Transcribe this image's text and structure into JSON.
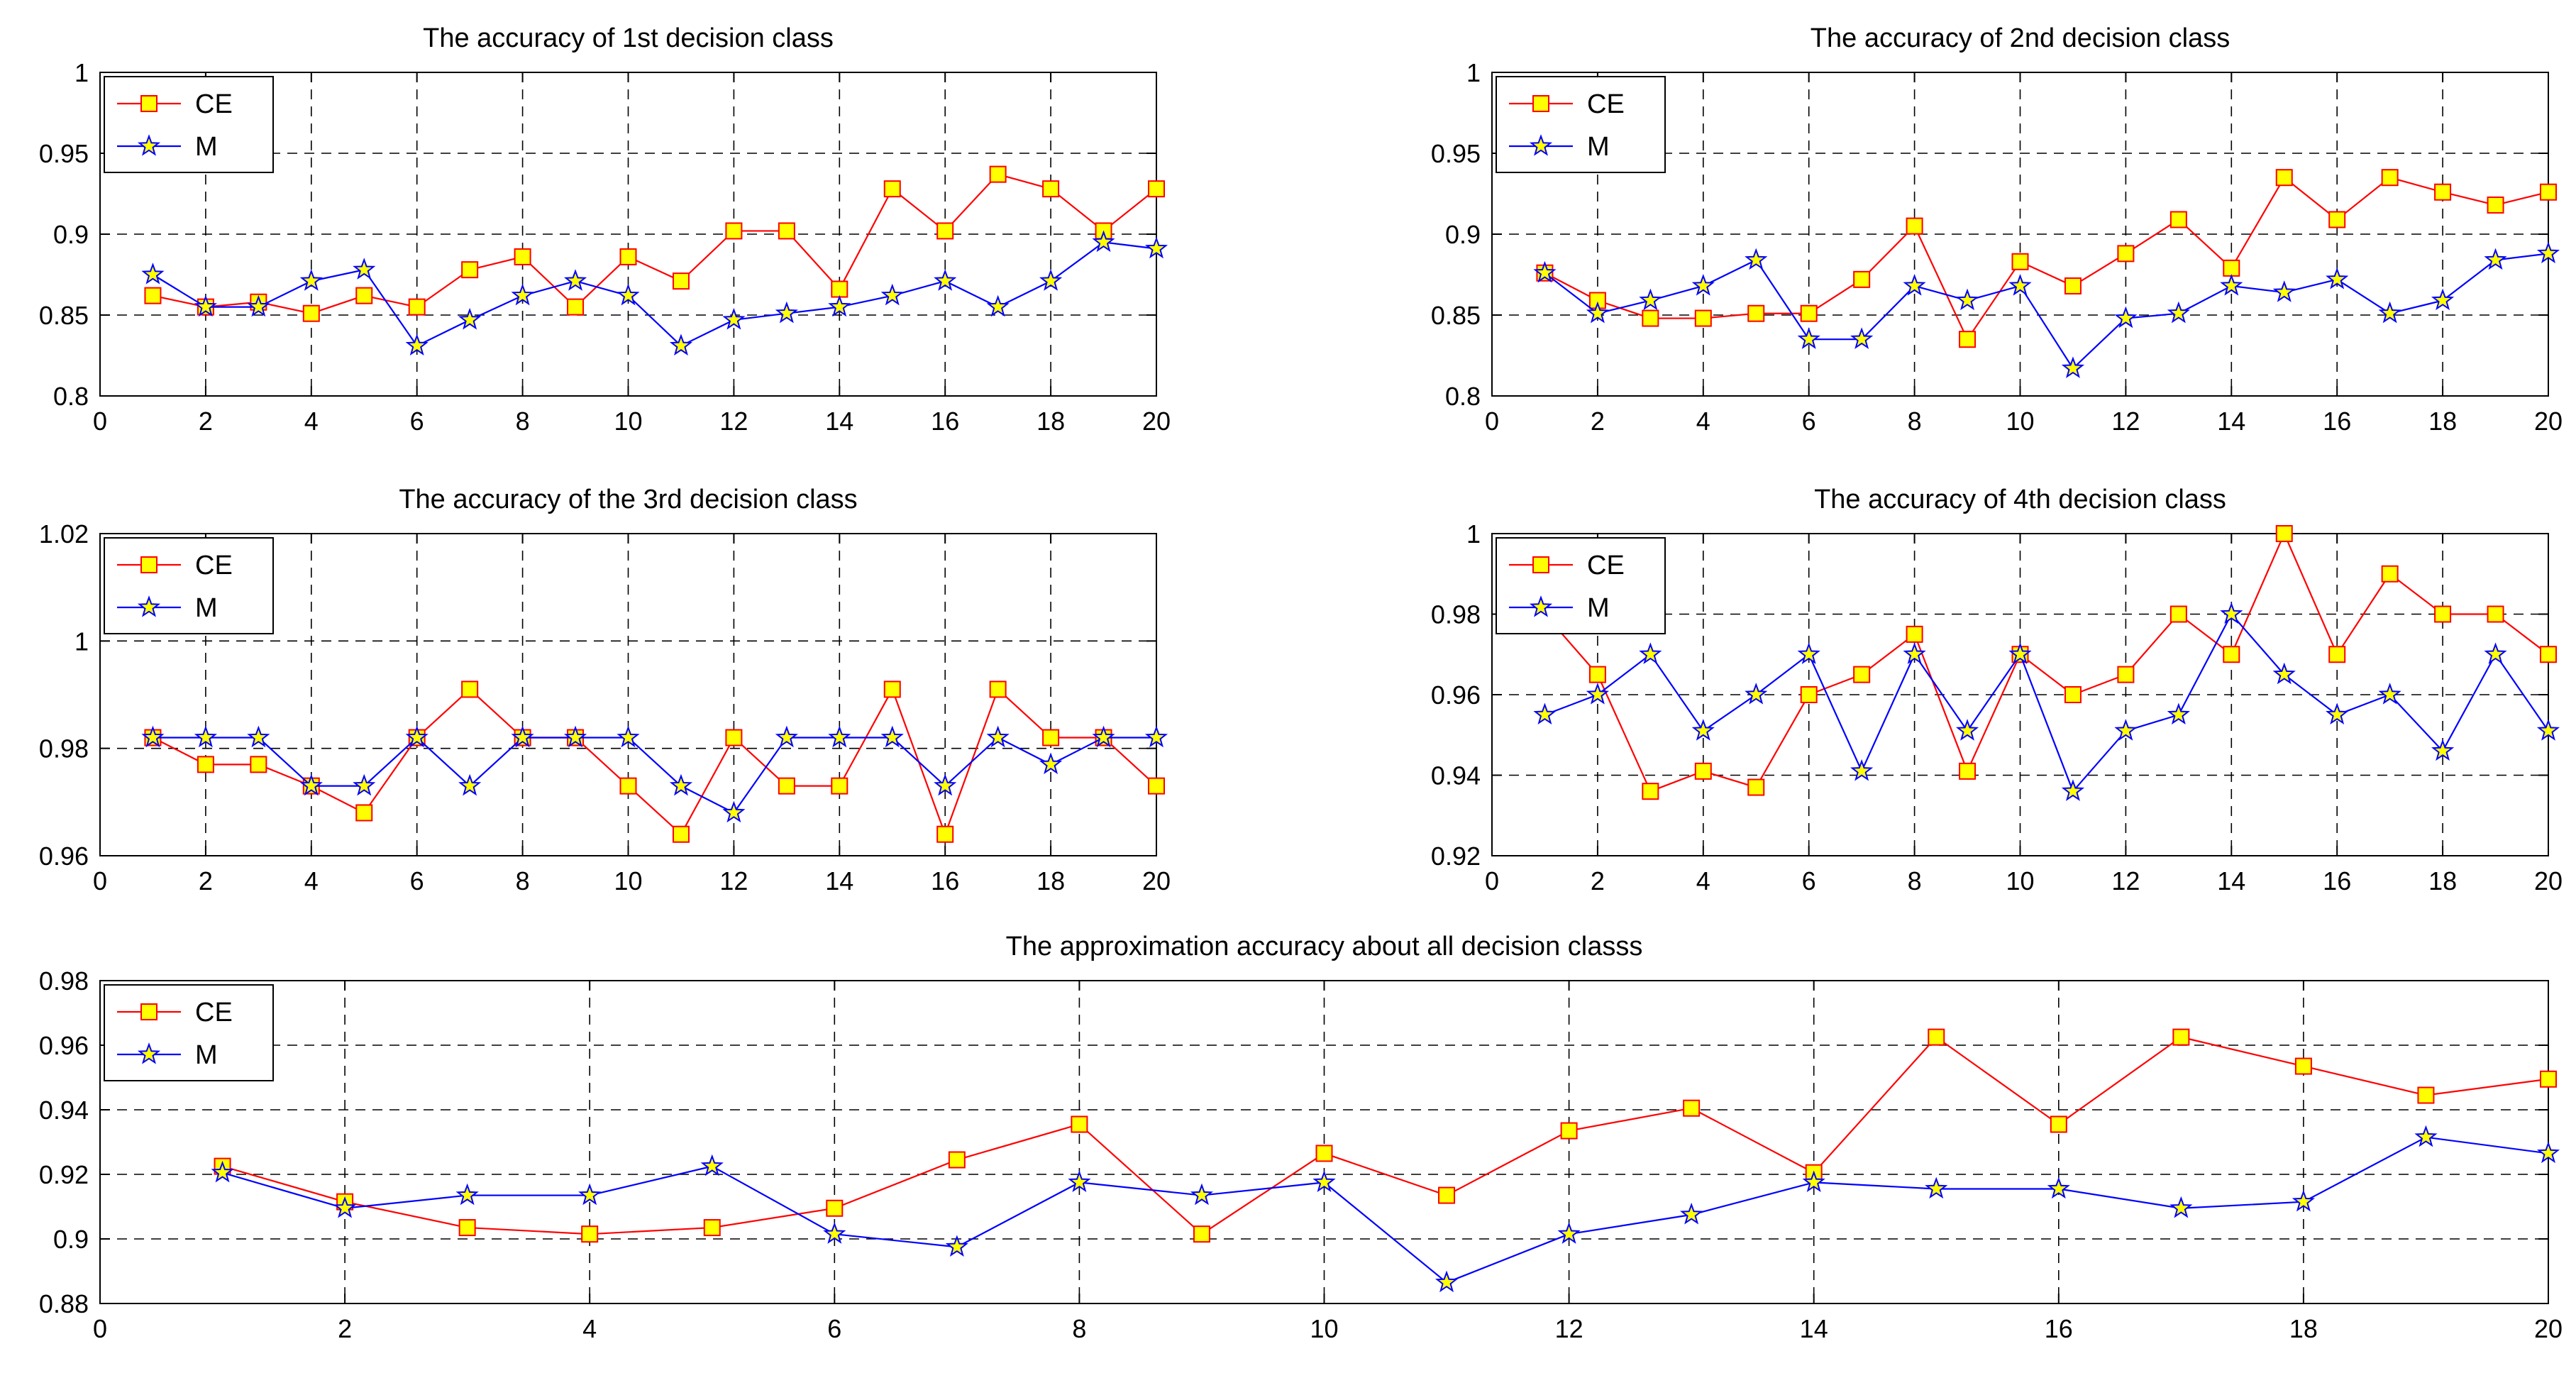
{
  "chart_data": [
    {
      "type": "line",
      "title": "The accuracy of 1st decision class",
      "xlabel": "",
      "ylabel": "",
      "xlim": [
        0,
        20
      ],
      "ylim": [
        0.8,
        1
      ],
      "xticks": [
        0,
        2,
        4,
        6,
        8,
        10,
        12,
        14,
        16,
        18,
        20
      ],
      "xtick_labels": [
        "0",
        "2",
        "4",
        "6",
        "8",
        "10",
        "12",
        "14",
        "16",
        "18",
        "20"
      ],
      "yticks": [
        0.8,
        0.85,
        0.9,
        0.95,
        1
      ],
      "ytick_labels": [
        "0.8",
        "0.85",
        "0.9",
        "0.95",
        "1"
      ],
      "grid": true,
      "legend_position": "top-left",
      "x": [
        1,
        2,
        3,
        4,
        5,
        6,
        7,
        8,
        9,
        10,
        11,
        12,
        13,
        14,
        15,
        16,
        17,
        18,
        19,
        20
      ],
      "series": [
        {
          "name": "CE",
          "color": "#ff0000",
          "marker": "square",
          "values": [
            0.862,
            0.855,
            0.858,
            0.851,
            0.862,
            0.855,
            0.878,
            0.886,
            0.855,
            0.886,
            0.871,
            0.902,
            0.902,
            0.866,
            0.928,
            0.902,
            0.937,
            0.928,
            0.902,
            0.928
          ]
        },
        {
          "name": "M",
          "color": "#0000ff",
          "marker": "star",
          "values": [
            0.875,
            0.855,
            0.855,
            0.871,
            0.878,
            0.831,
            0.847,
            0.862,
            0.871,
            0.862,
            0.831,
            0.847,
            0.851,
            0.855,
            0.862,
            0.871,
            0.855,
            0.871,
            0.895,
            0.891
          ]
        }
      ]
    },
    {
      "type": "line",
      "title": "The accuracy of 2nd decision class",
      "xlabel": "",
      "ylabel": "",
      "xlim": [
        0,
        20
      ],
      "ylim": [
        0.8,
        1
      ],
      "xticks": [
        0,
        2,
        4,
        6,
        8,
        10,
        12,
        14,
        16,
        18,
        20
      ],
      "xtick_labels": [
        "0",
        "2",
        "4",
        "6",
        "8",
        "10",
        "12",
        "14",
        "16",
        "18",
        "20"
      ],
      "yticks": [
        0.8,
        0.85,
        0.9,
        0.95,
        1
      ],
      "ytick_labels": [
        "0.8",
        "0.85",
        "0.9",
        "0.95",
        "1"
      ],
      "grid": true,
      "legend_position": "top-left",
      "x": [
        1,
        2,
        3,
        4,
        5,
        6,
        7,
        8,
        9,
        10,
        11,
        12,
        13,
        14,
        15,
        16,
        17,
        18,
        19,
        20
      ],
      "series": [
        {
          "name": "CE",
          "color": "#ff0000",
          "marker": "square",
          "values": [
            0.876,
            0.859,
            0.848,
            0.848,
            0.851,
            0.851,
            0.872,
            0.905,
            0.835,
            0.883,
            0.868,
            0.888,
            0.909,
            0.879,
            0.935,
            0.909,
            0.935,
            0.926,
            0.918,
            0.926
          ]
        },
        {
          "name": "M",
          "color": "#0000ff",
          "marker": "star",
          "values": [
            0.876,
            0.851,
            0.859,
            0.868,
            0.884,
            0.835,
            0.835,
            0.868,
            0.859,
            0.868,
            0.817,
            0.848,
            0.851,
            0.868,
            0.864,
            0.872,
            0.851,
            0.859,
            0.884,
            0.888
          ]
        }
      ]
    },
    {
      "type": "line",
      "title": "The accuracy of the 3rd decision class",
      "xlabel": "",
      "ylabel": "",
      "xlim": [
        0,
        20
      ],
      "ylim": [
        0.96,
        1.02
      ],
      "xticks": [
        0,
        2,
        4,
        6,
        8,
        10,
        12,
        14,
        16,
        18,
        20
      ],
      "xtick_labels": [
        "0",
        "2",
        "4",
        "6",
        "8",
        "10",
        "12",
        "14",
        "16",
        "18",
        "20"
      ],
      "yticks": [
        0.96,
        0.98,
        1,
        1.02
      ],
      "ytick_labels": [
        "0.96",
        "0.98",
        "1",
        "1.02"
      ],
      "grid": true,
      "legend_position": "top-left",
      "x": [
        1,
        2,
        3,
        4,
        5,
        6,
        7,
        8,
        9,
        10,
        11,
        12,
        13,
        14,
        15,
        16,
        17,
        18,
        19,
        20
      ],
      "series": [
        {
          "name": "CE",
          "color": "#ff0000",
          "marker": "square",
          "values": [
            0.982,
            0.977,
            0.977,
            0.973,
            0.968,
            0.982,
            0.991,
            0.982,
            0.982,
            0.973,
            0.964,
            0.982,
            0.973,
            0.973,
            0.991,
            0.964,
            0.991,
            0.982,
            0.982,
            0.973
          ]
        },
        {
          "name": "M",
          "color": "#0000ff",
          "marker": "star",
          "values": [
            0.982,
            0.982,
            0.982,
            0.973,
            0.973,
            0.982,
            0.973,
            0.982,
            0.982,
            0.982,
            0.973,
            0.968,
            0.982,
            0.982,
            0.982,
            0.973,
            0.982,
            0.977,
            0.982,
            0.982
          ]
        }
      ]
    },
    {
      "type": "line",
      "title": "The accuracy of 4th decision class",
      "xlabel": "",
      "ylabel": "",
      "xlim": [
        0,
        20
      ],
      "ylim": [
        0.92,
        1
      ],
      "xticks": [
        0,
        2,
        4,
        6,
        8,
        10,
        12,
        14,
        16,
        18,
        20
      ],
      "xtick_labels": [
        "0",
        "2",
        "4",
        "6",
        "8",
        "10",
        "12",
        "14",
        "16",
        "18",
        "20"
      ],
      "yticks": [
        0.92,
        0.94,
        0.96,
        0.98,
        1
      ],
      "ytick_labels": [
        "0.92",
        "0.94",
        "0.96",
        "0.98",
        "1"
      ],
      "grid": true,
      "legend_position": "top-left",
      "x": [
        1,
        2,
        3,
        4,
        5,
        6,
        7,
        8,
        9,
        10,
        11,
        12,
        13,
        14,
        15,
        16,
        17,
        18,
        19,
        20
      ],
      "series": [
        {
          "name": "CE",
          "color": "#ff0000",
          "marker": "square",
          "values": [
            0.98,
            0.965,
            0.936,
            0.941,
            0.937,
            0.96,
            0.965,
            0.975,
            0.941,
            0.97,
            0.96,
            0.965,
            0.98,
            0.97,
            1.0,
            0.97,
            0.99,
            0.98,
            0.98,
            0.97
          ]
        },
        {
          "name": "M",
          "color": "#0000ff",
          "marker": "star",
          "values": [
            0.955,
            0.96,
            0.97,
            0.951,
            0.96,
            0.97,
            0.941,
            0.97,
            0.951,
            0.97,
            0.936,
            0.951,
            0.955,
            0.98,
            0.965,
            0.955,
            0.96,
            0.946,
            0.97,
            0.951
          ]
        }
      ]
    },
    {
      "type": "line",
      "title": "The approximation accuracy about all decision classs",
      "xlabel": "",
      "ylabel": "",
      "xlim": [
        0,
        20
      ],
      "ylim": [
        0.88,
        0.98
      ],
      "xticks": [
        0,
        2,
        4,
        6,
        8,
        10,
        12,
        14,
        16,
        18,
        20
      ],
      "xtick_labels": [
        "0",
        "2",
        "4",
        "6",
        "8",
        "10",
        "12",
        "14",
        "16",
        "18",
        "20"
      ],
      "yticks": [
        0.88,
        0.9,
        0.92,
        0.94,
        0.96,
        0.98
      ],
      "ytick_labels": [
        "0.88",
        "0.9",
        "0.92",
        "0.94",
        "0.96",
        "0.98"
      ],
      "grid": true,
      "legend_position": "top-left",
      "x": [
        1,
        2,
        3,
        4,
        5,
        6,
        7,
        8,
        9,
        10,
        11,
        12,
        13,
        14,
        15,
        16,
        17,
        18,
        19,
        20
      ],
      "series": [
        {
          "name": "CE",
          "color": "#ff0000",
          "marker": "square",
          "values": [
            0.9225,
            0.9115,
            0.9035,
            0.9015,
            0.9035,
            0.9095,
            0.9245,
            0.9355,
            0.9015,
            0.9265,
            0.9135,
            0.9335,
            0.9405,
            0.9205,
            0.9625,
            0.9355,
            0.9625,
            0.9535,
            0.9445,
            0.9495
          ]
        },
        {
          "name": "M",
          "color": "#0000ff",
          "marker": "star",
          "values": [
            0.9205,
            0.9095,
            0.9135,
            0.9135,
            0.9225,
            0.9015,
            0.8975,
            0.9175,
            0.9135,
            0.9175,
            0.8865,
            0.9015,
            0.9075,
            0.9175,
            0.9155,
            0.9155,
            0.9095,
            0.9115,
            0.9315,
            0.9265
          ]
        }
      ]
    }
  ]
}
